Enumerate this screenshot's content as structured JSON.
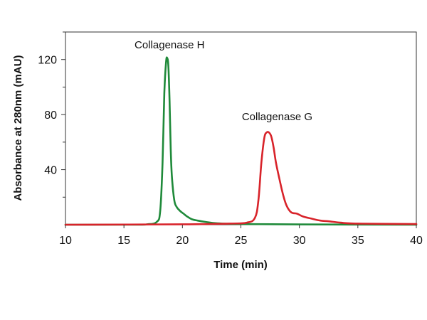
{
  "chart_data": {
    "type": "line",
    "title": "",
    "xlabel": "Time (min)",
    "ylabel": "Absorbance at 280nm (mAU)",
    "xlim": [
      10,
      40
    ],
    "ylim": [
      0,
      140
    ],
    "x_ticks": [
      10,
      15,
      20,
      25,
      30,
      35,
      40
    ],
    "y_ticks": [
      40,
      80,
      120
    ],
    "y_minor_ticks": [
      20,
      60,
      100,
      140
    ],
    "grid": false,
    "legend": "none",
    "series": [
      {
        "color": "#1f8a3a",
        "x": [
          10,
          16,
          17,
          17.8,
          18.1,
          18.3,
          18.45,
          18.6,
          18.7,
          18.8,
          18.9,
          19.0,
          19.1,
          19.3,
          19.5,
          19.8,
          20.1,
          20.4,
          20.8,
          21.3,
          22,
          23,
          25,
          30,
          40
        ],
        "y": [
          0,
          0,
          0.3,
          2,
          10,
          45,
          95,
          118,
          121,
          115,
          90,
          55,
          35,
          18,
          13,
          10,
          8,
          6,
          4,
          3,
          2,
          1,
          0.5,
          0.2,
          0
        ]
      },
      {
        "color": "#d8232a",
        "x": [
          10,
          20,
          24,
          25.5,
          26.2,
          26.5,
          26.75,
          27.0,
          27.2,
          27.4,
          27.6,
          27.8,
          28.0,
          28.3,
          28.6,
          28.9,
          29.3,
          29.8,
          30.3,
          31,
          31.8,
          32.5,
          33.5,
          35,
          40
        ],
        "y": [
          0,
          0.3,
          0.8,
          1.5,
          5,
          18,
          45,
          63,
          67,
          67,
          64,
          56,
          45,
          33,
          22,
          14,
          9,
          8,
          6,
          4.5,
          3,
          2.5,
          1.5,
          0.8,
          0.5
        ]
      }
    ],
    "annotations": [
      {
        "text": "Collagenase H",
        "x": 18.9,
        "y": 128
      },
      {
        "text": "Collagenase G",
        "x": 28.1,
        "y": 76
      }
    ]
  }
}
